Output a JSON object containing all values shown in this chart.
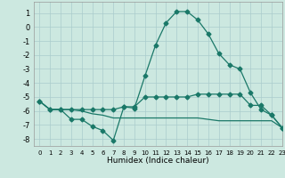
{
  "title": "",
  "xlabel": "Humidex (Indice chaleur)",
  "background_color": "#cce8e0",
  "grid_color": "#aacccc",
  "line_color": "#1a7868",
  "xlim": [
    -0.5,
    23
  ],
  "ylim": [
    -8.5,
    1.8
  ],
  "yticks": [
    1,
    0,
    -1,
    -2,
    -3,
    -4,
    -5,
    -6,
    -7,
    -8
  ],
  "xticks": [
    0,
    1,
    2,
    3,
    4,
    5,
    6,
    7,
    8,
    9,
    10,
    11,
    12,
    13,
    14,
    15,
    16,
    17,
    18,
    19,
    20,
    21,
    22,
    23
  ],
  "line1_x": [
    0,
    1,
    2,
    3,
    4,
    5,
    6,
    7,
    8,
    9,
    10,
    11,
    12,
    13,
    14,
    15,
    16,
    17,
    18,
    19,
    20,
    21,
    22,
    23
  ],
  "line1_y": [
    -5.3,
    -5.9,
    -5.9,
    -6.6,
    -6.6,
    -7.1,
    -7.4,
    -8.1,
    -5.7,
    -5.8,
    -3.5,
    -1.3,
    0.3,
    1.1,
    1.1,
    0.5,
    -0.5,
    -1.9,
    -2.7,
    -3.0,
    -4.7,
    -5.9,
    -6.3,
    -7.2
  ],
  "line2_x": [
    0,
    1,
    2,
    3,
    4,
    5,
    6,
    7,
    8,
    9,
    10,
    11,
    12,
    13,
    14,
    15,
    16,
    17,
    18,
    19,
    20,
    21,
    22,
    23
  ],
  "line2_y": [
    -5.3,
    -5.9,
    -5.9,
    -5.9,
    -5.9,
    -5.9,
    -5.9,
    -5.9,
    -5.7,
    -5.7,
    -5.0,
    -5.0,
    -5.0,
    -5.0,
    -5.0,
    -4.8,
    -4.8,
    -4.8,
    -4.8,
    -4.8,
    -5.6,
    -5.6,
    -6.3,
    -7.2
  ],
  "line3_x": [
    0,
    1,
    2,
    3,
    4,
    5,
    6,
    7,
    8,
    9,
    10,
    11,
    12,
    13,
    14,
    15,
    16,
    17,
    18,
    19,
    20,
    21,
    22,
    23
  ],
  "line3_y": [
    -5.3,
    -5.9,
    -5.9,
    -5.9,
    -6.0,
    -6.2,
    -6.3,
    -6.5,
    -6.5,
    -6.5,
    -6.5,
    -6.5,
    -6.5,
    -6.5,
    -6.5,
    -6.5,
    -6.6,
    -6.7,
    -6.7,
    -6.7,
    -6.7,
    -6.7,
    -6.7,
    -7.2
  ],
  "xlabel_fontsize": 6.5,
  "ytick_fontsize": 6.0,
  "xtick_fontsize": 5.0,
  "linewidth": 0.9,
  "markersize": 2.5
}
